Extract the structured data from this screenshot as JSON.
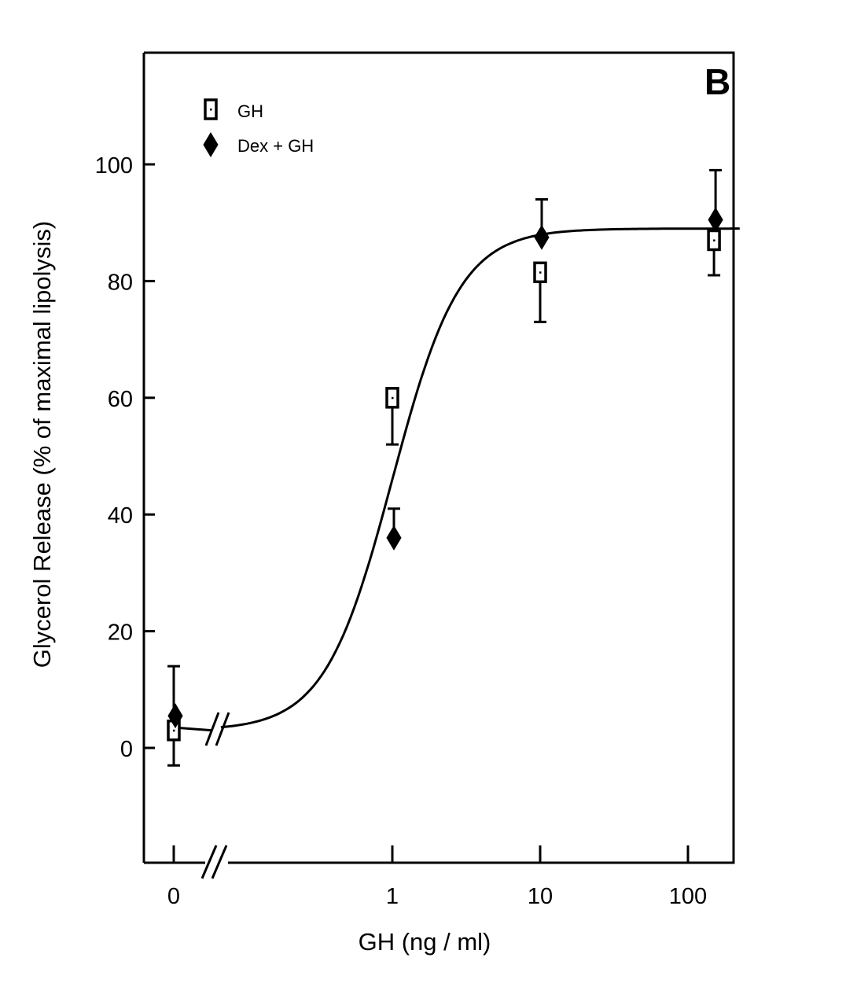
{
  "chart_data": {
    "type": "scatter",
    "panel_label": "B",
    "xlabel": "GH (ng / ml)",
    "ylabel": "Glycerol Release (% of maximal lipolysis)",
    "x_scale": "log (with axis break between 0 and 1)",
    "x_ticks": [
      "0",
      "1",
      "10",
      "100"
    ],
    "y_ticks": [
      "0",
      "20",
      "40",
      "60",
      "80",
      "100"
    ],
    "ylim": [
      -20,
      117
    ],
    "grid": false,
    "legend_position": "top-left",
    "series": [
      {
        "name": "GH",
        "marker": "open-square",
        "points": [
          {
            "x": "0",
            "y": 3,
            "err_low": -3,
            "err_high": 14
          },
          {
            "x": "1",
            "y": 60,
            "err_low": 52,
            "err_high": 60
          },
          {
            "x": "10",
            "y": 81.5,
            "err_low": 73,
            "err_high": 81.5
          },
          {
            "x": "150",
            "y": 87,
            "err_low": 81,
            "err_high": 87
          }
        ]
      },
      {
        "name": "Dex + GH",
        "marker": "filled-diamond",
        "points": [
          {
            "x": "0",
            "y": 5.5,
            "err_low": 5.5,
            "err_high": 5.5
          },
          {
            "x": "1",
            "y": 36,
            "err_low": 36,
            "err_high": 41
          },
          {
            "x": "10",
            "y": 87.5,
            "err_low": 87.5,
            "err_high": 94
          },
          {
            "x": "150",
            "y": 90.5,
            "err_low": 90.5,
            "err_high": 99
          }
        ]
      }
    ],
    "fit_curve": {
      "type": "sigmoid",
      "baseline": 3,
      "top": 89,
      "ec50": 1,
      "hill": 1.9
    }
  }
}
